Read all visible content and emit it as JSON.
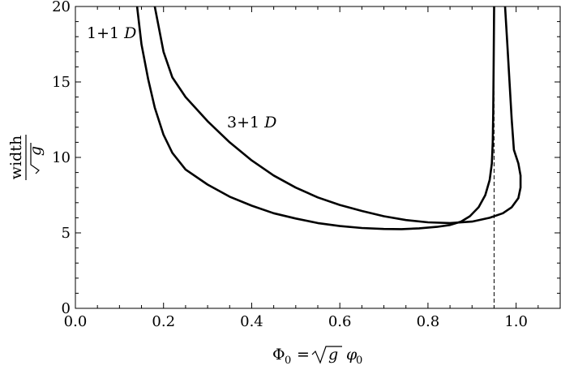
{
  "chart_data": {
    "type": "line",
    "title": "",
    "xlabel": "Φ₀ = √g φ₀",
    "ylabel": "width / √g",
    "xlabel_parts": {
      "lhs": "Φ",
      "lhs_sub": "0",
      "eq": "=",
      "g": "g",
      "phi": "φ",
      "phi_sub": "0"
    },
    "ylabel_parts": {
      "numerator": "width",
      "denominator": "g"
    },
    "xlim": [
      0.0,
      1.1
    ],
    "ylim": [
      0,
      20
    ],
    "x_ticks": [
      0.0,
      0.2,
      0.4,
      0.6,
      0.8,
      1.0
    ],
    "x_tick_labels": [
      "0.0",
      "0.2",
      "0.4",
      "0.6",
      "0.8",
      "1.0"
    ],
    "y_ticks": [
      0,
      5,
      10,
      15,
      20
    ],
    "y_tick_labels": [
      "0",
      "5",
      "10",
      "15",
      "20"
    ],
    "grid": false,
    "series": [
      {
        "name": "1+1 D",
        "label_parts": {
          "text": "1+1 ",
          "italic": "D"
        },
        "color": "#000000",
        "points": [
          [
            0.14,
            20.0
          ],
          [
            0.15,
            17.5
          ],
          [
            0.165,
            15.2
          ],
          [
            0.18,
            13.3
          ],
          [
            0.2,
            11.5
          ],
          [
            0.22,
            10.3
          ],
          [
            0.25,
            9.2
          ],
          [
            0.3,
            8.2
          ],
          [
            0.35,
            7.4
          ],
          [
            0.4,
            6.8
          ],
          [
            0.45,
            6.3
          ],
          [
            0.5,
            5.95
          ],
          [
            0.55,
            5.65
          ],
          [
            0.6,
            5.45
          ],
          [
            0.65,
            5.32
          ],
          [
            0.7,
            5.26
          ],
          [
            0.74,
            5.25
          ],
          [
            0.78,
            5.3
          ],
          [
            0.82,
            5.4
          ],
          [
            0.85,
            5.52
          ],
          [
            0.875,
            5.75
          ],
          [
            0.895,
            6.1
          ],
          [
            0.915,
            6.7
          ],
          [
            0.93,
            7.5
          ],
          [
            0.94,
            8.5
          ],
          [
            0.945,
            9.6
          ],
          [
            0.947,
            11.0
          ],
          [
            0.948,
            13.0
          ],
          [
            0.949,
            16.0
          ],
          [
            0.95,
            20.0
          ]
        ]
      },
      {
        "name": "3+1 D",
        "label_parts": {
          "text": "3+1 ",
          "italic": "D"
        },
        "color": "#000000",
        "points": [
          [
            0.18,
            20.0
          ],
          [
            0.19,
            18.5
          ],
          [
            0.2,
            17.0
          ],
          [
            0.22,
            15.3
          ],
          [
            0.25,
            14.0
          ],
          [
            0.3,
            12.4
          ],
          [
            0.35,
            11.0
          ],
          [
            0.4,
            9.8
          ],
          [
            0.45,
            8.8
          ],
          [
            0.5,
            8.0
          ],
          [
            0.55,
            7.35
          ],
          [
            0.6,
            6.85
          ],
          [
            0.65,
            6.45
          ],
          [
            0.7,
            6.1
          ],
          [
            0.75,
            5.85
          ],
          [
            0.8,
            5.7
          ],
          [
            0.85,
            5.65
          ],
          [
            0.9,
            5.75
          ],
          [
            0.94,
            6.0
          ],
          [
            0.97,
            6.3
          ],
          [
            0.99,
            6.7
          ],
          [
            1.005,
            7.3
          ],
          [
            1.01,
            8.0
          ],
          [
            1.01,
            8.8
          ],
          [
            1.005,
            9.6
          ],
          [
            0.995,
            10.5
          ],
          [
            0.99,
            12.5
          ],
          [
            0.985,
            15.0
          ],
          [
            0.98,
            17.5
          ],
          [
            0.975,
            20.0
          ]
        ]
      }
    ],
    "annotations": [
      {
        "type": "vline",
        "x": 0.95,
        "style": "dashed",
        "color": "#000000"
      }
    ]
  }
}
